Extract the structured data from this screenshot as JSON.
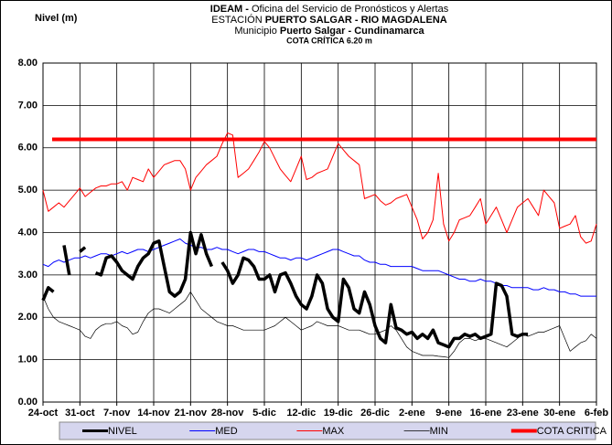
{
  "chart_data": {
    "type": "line",
    "y_label": "Nivel (m)",
    "title_lines": [
      [
        "IDEAM -",
        "Oficina del Servicio de Pronósticos y Alertas"
      ],
      [
        "ESTACIÓN",
        "PUERTO SALGAR - RIO MAGDALENA"
      ],
      [
        "Municipio",
        "Puerto Salgar - Cundinamarca"
      ]
    ],
    "annotation": "COTA CRÍTICA 6.20 m",
    "annotation_color": "#ff0000",
    "grid": true,
    "legend": "bottom",
    "ylim": [
      0,
      8
    ],
    "yticks": [
      {
        "value": 0,
        "label": "0.00"
      },
      {
        "value": 1,
        "label": "1.00"
      },
      {
        "value": 2,
        "label": "2.00"
      },
      {
        "value": 3,
        "label": "3.00"
      },
      {
        "value": 4,
        "label": "4.00"
      },
      {
        "value": 5,
        "label": "5.00"
      },
      {
        "value": 6,
        "label": "6.00"
      },
      {
        "value": 7,
        "label": "7.00"
      },
      {
        "value": 8,
        "label": "8.00"
      }
    ],
    "categories": [
      "24-oct",
      null,
      null,
      null,
      null,
      null,
      null,
      "31-oct",
      null,
      null,
      null,
      null,
      null,
      null,
      "7-nov",
      null,
      null,
      null,
      null,
      null,
      null,
      "14-nov",
      null,
      null,
      null,
      null,
      null,
      null,
      "21-nov",
      null,
      null,
      null,
      null,
      null,
      null,
      "28-nov",
      null,
      null,
      null,
      null,
      null,
      null,
      "5-dic",
      null,
      null,
      null,
      null,
      null,
      null,
      "12-dic",
      null,
      null,
      null,
      null,
      null,
      null,
      "19-dic",
      null,
      null,
      null,
      null,
      null,
      null,
      "26-dic",
      null,
      null,
      null,
      null,
      null,
      null,
      "2-ene",
      null,
      null,
      null,
      null,
      null,
      null,
      "9-ene",
      null,
      null,
      null,
      null,
      null,
      null,
      "16-ene",
      null,
      null,
      null,
      null,
      null,
      null,
      "23-ene",
      null,
      null,
      null,
      null,
      null,
      null,
      "30-ene",
      null,
      null,
      null,
      null,
      null,
      null,
      "6-feb"
    ],
    "series": [
      {
        "name": "NIVEL",
        "color": "#000000",
        "width": 3.5,
        "values": [
          2.4,
          2.7,
          2.6,
          null,
          3.7,
          3.0,
          null,
          3.55,
          3.65,
          null,
          3.05,
          3.0,
          3.4,
          3.45,
          3.3,
          3.1,
          3.0,
          2.9,
          3.2,
          3.4,
          3.5,
          3.75,
          3.8,
          3.2,
          2.6,
          2.5,
          2.6,
          2.9,
          4.0,
          3.5,
          3.95,
          3.5,
          3.2,
          null,
          3.3,
          3.1,
          2.8,
          3.0,
          3.4,
          3.35,
          3.2,
          2.9,
          2.9,
          3.0,
          2.6,
          3.0,
          3.05,
          2.8,
          2.5,
          2.3,
          2.2,
          2.5,
          3.0,
          2.8,
          2.2,
          2.0,
          1.9,
          2.9,
          2.7,
          2.2,
          2.1,
          2.6,
          2.3,
          1.8,
          1.5,
          1.4,
          2.3,
          1.75,
          1.7,
          1.6,
          1.65,
          1.5,
          1.6,
          1.5,
          1.7,
          1.4,
          1.35,
          1.3,
          1.5,
          1.5,
          1.6,
          1.55,
          1.6,
          1.5,
          1.55,
          1.6,
          2.8,
          2.75,
          2.5,
          1.6,
          1.55,
          1.6,
          1.6,
          null,
          null,
          null,
          null,
          null,
          null,
          null,
          null,
          null,
          null,
          null,
          null,
          null
        ]
      },
      {
        "name": "MED",
        "color": "#0000ff",
        "width": 1,
        "values": [
          3.25,
          3.2,
          3.3,
          3.35,
          3.3,
          3.35,
          3.4,
          3.4,
          3.45,
          3.4,
          3.45,
          3.5,
          3.5,
          3.45,
          3.5,
          3.55,
          3.5,
          3.55,
          3.6,
          3.6,
          3.55,
          3.6,
          3.65,
          3.7,
          3.75,
          3.8,
          3.85,
          3.75,
          3.7,
          3.65,
          3.65,
          3.6,
          3.6,
          3.65,
          3.6,
          3.6,
          3.55,
          3.5,
          3.55,
          3.6,
          3.6,
          3.55,
          3.55,
          3.5,
          3.45,
          3.4,
          3.4,
          3.35,
          3.4,
          3.4,
          3.35,
          3.4,
          3.45,
          3.5,
          3.55,
          3.6,
          3.6,
          3.55,
          3.5,
          3.45,
          3.45,
          3.35,
          3.3,
          3.3,
          3.25,
          3.25,
          3.2,
          3.2,
          3.2,
          3.2,
          3.2,
          3.15,
          3.1,
          3.1,
          3.1,
          3.1,
          3.05,
          3.0,
          2.95,
          2.9,
          2.9,
          2.85,
          2.85,
          2.9,
          2.85,
          2.85,
          2.8,
          2.75,
          2.75,
          2.7,
          2.7,
          2.7,
          2.7,
          2.65,
          2.65,
          2.7,
          2.65,
          2.65,
          2.6,
          2.6,
          2.55,
          2.55,
          2.5,
          2.5,
          2.5,
          2.5
        ]
      },
      {
        "name": "MAX",
        "color": "#ff0000",
        "width": 1,
        "values": [
          5.0,
          4.5,
          4.6,
          4.7,
          4.6,
          4.75,
          4.9,
          5.05,
          4.85,
          4.95,
          5.05,
          5.1,
          5.1,
          5.15,
          5.15,
          5.2,
          5.0,
          5.3,
          5.25,
          5.2,
          5.5,
          5.3,
          5.45,
          5.6,
          5.65,
          5.7,
          5.7,
          5.5,
          5.0,
          5.3,
          5.45,
          5.6,
          5.7,
          5.8,
          6.1,
          6.35,
          6.3,
          5.3,
          5.4,
          5.5,
          5.7,
          5.9,
          6.15,
          6.0,
          5.75,
          5.5,
          5.35,
          5.2,
          5.5,
          5.8,
          5.25,
          5.3,
          5.4,
          5.45,
          5.5,
          5.8,
          6.1,
          5.95,
          5.8,
          5.7,
          5.6,
          4.8,
          4.85,
          4.9,
          4.75,
          4.65,
          4.7,
          4.8,
          4.85,
          4.9,
          4.6,
          4.3,
          3.85,
          4.0,
          4.3,
          5.4,
          4.2,
          3.8,
          4.0,
          4.3,
          4.35,
          4.4,
          4.6,
          4.8,
          4.2,
          4.4,
          4.6,
          4.3,
          4.0,
          4.3,
          4.6,
          4.7,
          4.8,
          4.6,
          4.4,
          5.0,
          4.85,
          4.7,
          4.1,
          4.15,
          4.2,
          4.4,
          3.9,
          3.75,
          3.8,
          4.2
        ]
      },
      {
        "name": "MIN",
        "color": "#000000",
        "width": 0.7,
        "values": [
          2.5,
          2.2,
          2.0,
          1.9,
          1.85,
          1.8,
          1.75,
          1.7,
          1.55,
          1.5,
          1.7,
          1.8,
          1.85,
          1.85,
          1.9,
          1.8,
          1.75,
          1.6,
          1.65,
          1.9,
          2.1,
          2.2,
          2.2,
          2.15,
          2.1,
          2.2,
          2.3,
          2.4,
          2.6,
          2.4,
          2.2,
          2.1,
          2.0,
          1.9,
          1.85,
          1.8,
          1.8,
          1.75,
          1.7,
          1.7,
          1.7,
          1.7,
          1.7,
          1.75,
          1.8,
          1.9,
          2.0,
          1.9,
          1.8,
          1.7,
          1.75,
          1.8,
          1.9,
          1.85,
          1.8,
          1.8,
          1.8,
          1.75,
          1.7,
          1.7,
          1.7,
          1.65,
          1.6,
          1.6,
          1.65,
          1.7,
          1.8,
          1.7,
          1.5,
          1.3,
          1.2,
          1.15,
          1.1,
          1.1,
          1.1,
          1.08,
          1.07,
          1.05,
          1.2,
          1.4,
          1.5,
          1.5,
          1.45,
          1.5,
          1.5,
          1.45,
          1.4,
          1.35,
          1.3,
          1.4,
          1.5,
          1.6,
          1.55,
          1.6,
          1.65,
          1.65,
          1.7,
          1.75,
          1.8,
          1.5,
          1.2,
          1.3,
          1.4,
          1.45,
          1.6,
          1.5
        ]
      }
    ],
    "threshold": {
      "name": "COTA CRITICA",
      "value": 6.2,
      "color": "#ff0000",
      "width": 4
    }
  }
}
